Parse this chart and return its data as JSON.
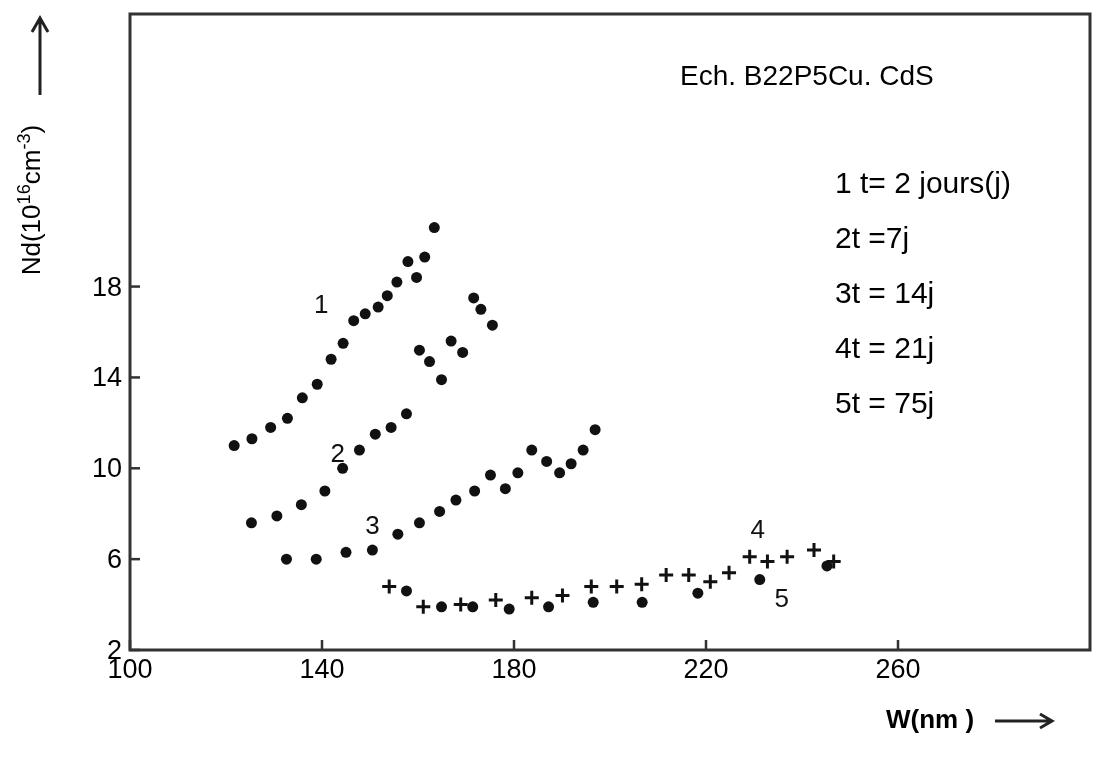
{
  "chart_data": {
    "type": "scatter",
    "xlabel": "W(nm )",
    "ylabel": "Nd(10$^{16}$cm$^{-3}$)",
    "xlim": [
      100,
      300
    ],
    "ylim": [
      2,
      30
    ],
    "xticks": [
      100,
      140,
      180,
      220,
      260
    ],
    "yticks": [
      2,
      6,
      10,
      14,
      18
    ],
    "annotations": [
      "Ech. B22P5Cu. CdS",
      "1 t= 2 jours(j)",
      "2t =7j",
      "3t = 14j",
      "4t = 21j",
      "5t = 75j"
    ],
    "series": [
      {
        "name": "1",
        "color": "#111111",
        "marker": "circle",
        "x": [
          121.7,
          125.4,
          129.3,
          132.8,
          135.9,
          139.0,
          141.9,
          144.4,
          146.6,
          149.0,
          151.7,
          153.6,
          155.6,
          157.9,
          159.7,
          161.4,
          163.4
        ],
        "values": [
          11.0,
          11.3,
          11.8,
          12.2,
          13.1,
          13.7,
          14.8,
          15.5,
          16.5,
          16.8,
          17.1,
          17.6,
          18.2,
          19.1,
          18.4,
          19.3,
          20.6
        ]
      },
      {
        "name": "2",
        "color": "#111111",
        "marker": "circle",
        "x": [
          125.3,
          130.6,
          135.7,
          140.6,
          144.3,
          147.8,
          151.1,
          154.4,
          157.6,
          160.3,
          162.4,
          164.9,
          166.9,
          169.3,
          171.6,
          173.1,
          175.5
        ],
        "values": [
          7.6,
          7.9,
          8.4,
          9.0,
          10.0,
          10.8,
          11.5,
          11.8,
          12.4,
          15.2,
          14.7,
          13.9,
          15.6,
          15.1,
          17.5,
          17.0,
          16.3
        ]
      },
      {
        "name": "3",
        "color": "#111111",
        "marker": "circle",
        "x": [
          132.6,
          138.8,
          145.0,
          150.5,
          155.8,
          160.3,
          164.5,
          167.9,
          171.8,
          175.1,
          178.2,
          180.8,
          183.7,
          186.8,
          189.5,
          191.9,
          194.4,
          196.9
        ],
        "values": [
          6.0,
          6.0,
          6.3,
          6.4,
          7.1,
          7.6,
          8.1,
          8.6,
          9.0,
          9.7,
          9.1,
          9.8,
          10.8,
          10.3,
          9.8,
          10.2,
          10.8,
          11.7
        ]
      },
      {
        "name": "4",
        "color": "#111111",
        "marker": "cross",
        "x": [
          154.0,
          161.1,
          168.9,
          176.2,
          183.7,
          190.1,
          196.1,
          201.4,
          206.6,
          211.7,
          216.4,
          220.9,
          224.8,
          229.1,
          232.8,
          236.9,
          242.5,
          246.6
        ],
        "values": [
          4.8,
          3.9,
          4.0,
          4.2,
          4.3,
          4.4,
          4.8,
          4.8,
          4.9,
          5.3,
          5.3,
          5.0,
          5.4,
          6.1,
          5.9,
          6.1,
          6.4,
          5.9
        ]
      },
      {
        "name": "5",
        "color": "#111111",
        "marker": "circle",
        "x": [
          157.6,
          164.9,
          171.4,
          179.0,
          187.2,
          196.5,
          206.7,
          218.3,
          231.2,
          245.2
        ],
        "values": [
          4.6,
          3.9,
          3.9,
          3.8,
          3.9,
          4.1,
          4.1,
          4.5,
          5.1,
          5.7
        ]
      }
    ]
  }
}
